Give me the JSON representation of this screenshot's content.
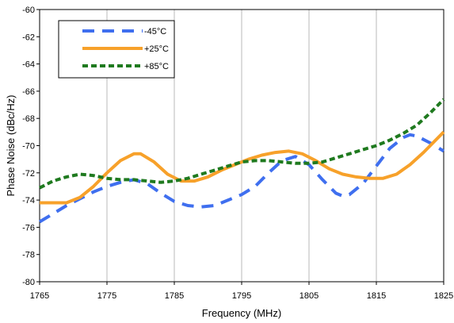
{
  "chart_data": {
    "type": "line",
    "title": "",
    "xlabel": "Frequency (MHz)",
    "ylabel": "Phase Noise (dBc/Hz)",
    "xlim": [
      1765,
      1825
    ],
    "ylim": [
      -80,
      -60
    ],
    "xticks": [
      1765,
      1775,
      1785,
      1795,
      1805,
      1815,
      1825
    ],
    "yticks": [
      -80,
      -78,
      -76,
      -74,
      -72,
      -70,
      -68,
      -66,
      -64,
      -62,
      -60
    ],
    "xtick_labels": [
      "1765",
      "1775",
      "1785",
      "1795",
      "1805",
      "1815",
      "1825"
    ],
    "ytick_labels": [
      "-80",
      "-78",
      "-76",
      "-74",
      "-72",
      "-70",
      "-68",
      "-66",
      "-64",
      "-62",
      "-60"
    ],
    "grid": "vertical",
    "legend_position": "top-left",
    "series": [
      {
        "name": "-45°C",
        "color": "#3f6fef",
        "style": "dashed",
        "points": [
          [
            1765,
            -75.6
          ],
          [
            1767,
            -75.0
          ],
          [
            1769,
            -74.4
          ],
          [
            1771,
            -73.9
          ],
          [
            1773,
            -73.4
          ],
          [
            1775,
            -73.0
          ],
          [
            1777,
            -72.7
          ],
          [
            1779,
            -72.5
          ],
          [
            1781,
            -72.8
          ],
          [
            1783,
            -73.5
          ],
          [
            1785,
            -74.1
          ],
          [
            1787,
            -74.4
          ],
          [
            1789,
            -74.5
          ],
          [
            1791,
            -74.4
          ],
          [
            1793,
            -74.0
          ],
          [
            1795,
            -73.6
          ],
          [
            1797,
            -73.0
          ],
          [
            1799,
            -72.0
          ],
          [
            1801,
            -71.1
          ],
          [
            1803,
            -70.8
          ],
          [
            1805,
            -71.4
          ],
          [
            1807,
            -72.5
          ],
          [
            1809,
            -73.5
          ],
          [
            1810,
            -73.7
          ],
          [
            1811,
            -73.6
          ],
          [
            1813,
            -72.8
          ],
          [
            1815,
            -71.5
          ],
          [
            1817,
            -70.2
          ],
          [
            1819,
            -69.4
          ],
          [
            1820,
            -69.2
          ],
          [
            1821,
            -69.3
          ],
          [
            1823,
            -69.8
          ],
          [
            1825,
            -70.4
          ]
        ]
      },
      {
        "name": "+25°C",
        "color": "#f7a12a",
        "style": "solid",
        "points": [
          [
            1765,
            -74.2
          ],
          [
            1767,
            -74.2
          ],
          [
            1769,
            -74.2
          ],
          [
            1771,
            -73.8
          ],
          [
            1773,
            -73.0
          ],
          [
            1775,
            -72.0
          ],
          [
            1777,
            -71.1
          ],
          [
            1779,
            -70.6
          ],
          [
            1780,
            -70.6
          ],
          [
            1782,
            -71.2
          ],
          [
            1784,
            -72.1
          ],
          [
            1786,
            -72.6
          ],
          [
            1788,
            -72.6
          ],
          [
            1790,
            -72.3
          ],
          [
            1792,
            -71.8
          ],
          [
            1794,
            -71.4
          ],
          [
            1796,
            -71.0
          ],
          [
            1798,
            -70.7
          ],
          [
            1800,
            -70.5
          ],
          [
            1802,
            -70.4
          ],
          [
            1804,
            -70.6
          ],
          [
            1806,
            -71.1
          ],
          [
            1808,
            -71.7
          ],
          [
            1810,
            -72.1
          ],
          [
            1812,
            -72.3
          ],
          [
            1814,
            -72.4
          ],
          [
            1816,
            -72.4
          ],
          [
            1818,
            -72.1
          ],
          [
            1820,
            -71.4
          ],
          [
            1822,
            -70.5
          ],
          [
            1824,
            -69.5
          ],
          [
            1825,
            -69.0
          ]
        ]
      },
      {
        "name": "+85°C",
        "color": "#1f7a1f",
        "style": "dotted",
        "points": [
          [
            1765,
            -73.1
          ],
          [
            1767,
            -72.6
          ],
          [
            1769,
            -72.3
          ],
          [
            1771,
            -72.1
          ],
          [
            1773,
            -72.2
          ],
          [
            1775,
            -72.4
          ],
          [
            1777,
            -72.5
          ],
          [
            1779,
            -72.5
          ],
          [
            1781,
            -72.6
          ],
          [
            1783,
            -72.7
          ],
          [
            1785,
            -72.6
          ],
          [
            1787,
            -72.4
          ],
          [
            1789,
            -72.1
          ],
          [
            1791,
            -71.8
          ],
          [
            1793,
            -71.5
          ],
          [
            1795,
            -71.2
          ],
          [
            1797,
            -71.1
          ],
          [
            1799,
            -71.1
          ],
          [
            1801,
            -71.2
          ],
          [
            1803,
            -71.3
          ],
          [
            1805,
            -71.3
          ],
          [
            1807,
            -71.2
          ],
          [
            1809,
            -70.9
          ],
          [
            1811,
            -70.6
          ],
          [
            1813,
            -70.3
          ],
          [
            1815,
            -70.0
          ],
          [
            1817,
            -69.6
          ],
          [
            1819,
            -69.1
          ],
          [
            1821,
            -68.5
          ],
          [
            1823,
            -67.6
          ],
          [
            1825,
            -66.6
          ]
        ]
      }
    ]
  }
}
